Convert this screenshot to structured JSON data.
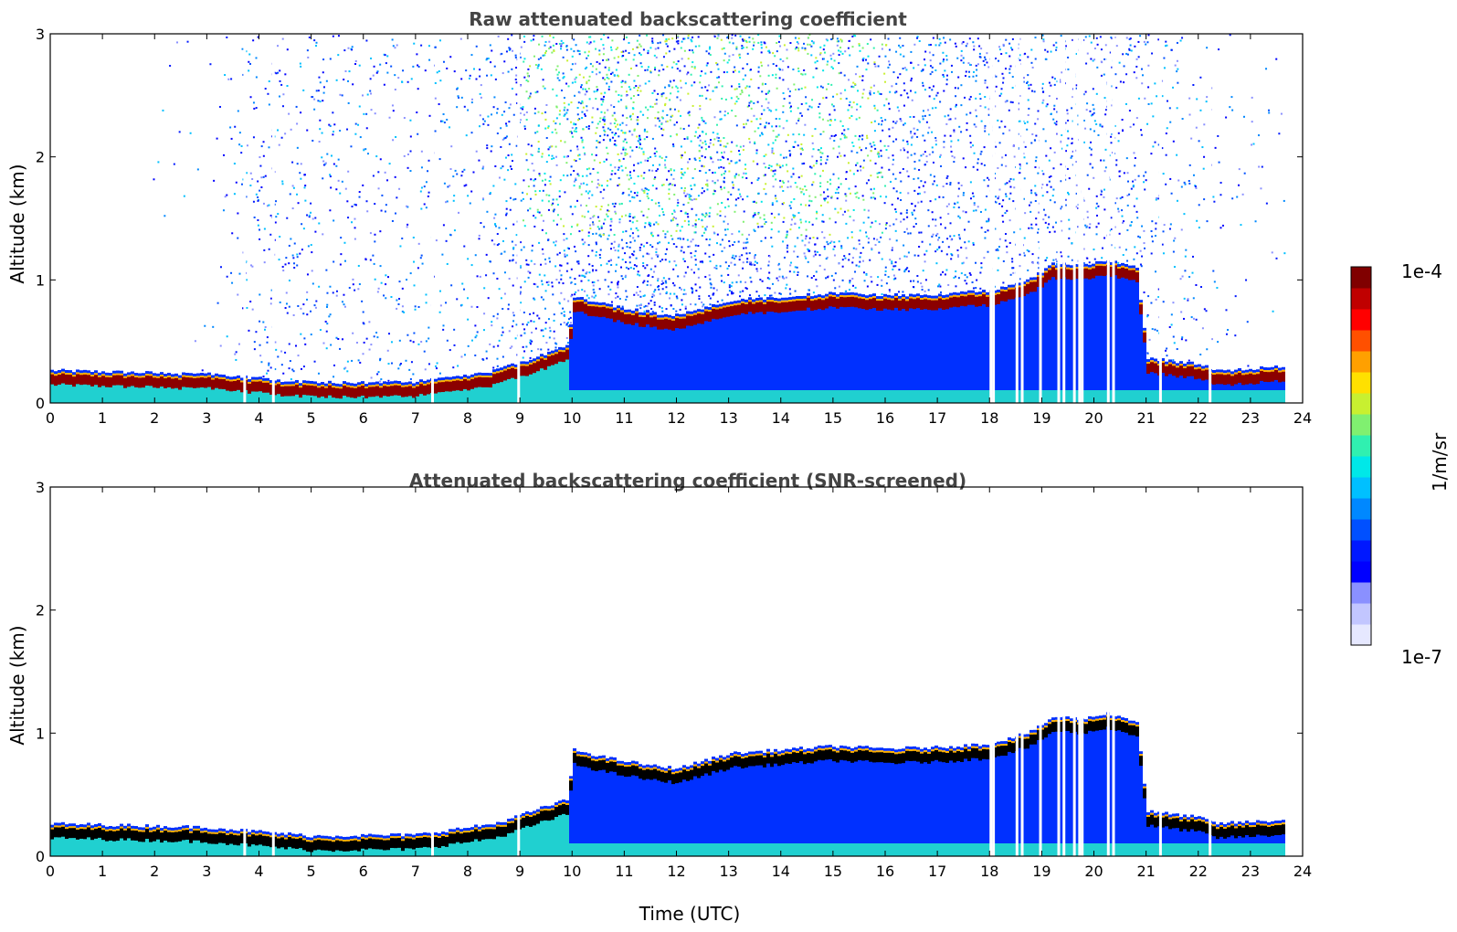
{
  "chart_data": [
    {
      "type": "heatmap",
      "title": "Raw attenuated backscattering coefficient",
      "xlabel": "",
      "ylabel": "Altitude (km)",
      "xlim": [
        0,
        24
      ],
      "ylim": [
        0,
        3
      ],
      "xticks": [
        "0",
        "1",
        "2",
        "3",
        "4",
        "5",
        "6",
        "7",
        "8",
        "9",
        "10",
        "11",
        "12",
        "13",
        "14",
        "15",
        "16",
        "17",
        "18",
        "19",
        "20",
        "21",
        "22",
        "23",
        "24"
      ],
      "yticks": [
        "0",
        "1",
        "2",
        "3"
      ],
      "data_end_hour": 23.7,
      "layer_top_km": [
        [
          0,
          0.25
        ],
        [
          3,
          0.22
        ],
        [
          5,
          0.15
        ],
        [
          7,
          0.16
        ],
        [
          8.5,
          0.25
        ],
        [
          9.9,
          0.45
        ],
        [
          10,
          0.85
        ],
        [
          10.7,
          0.78
        ],
        [
          11.5,
          0.72
        ],
        [
          12,
          0.7
        ],
        [
          13,
          0.82
        ],
        [
          14,
          0.85
        ],
        [
          15,
          0.88
        ],
        [
          16,
          0.86
        ],
        [
          17,
          0.87
        ],
        [
          18,
          0.9
        ],
        [
          18.8,
          1.0
        ],
        [
          19.2,
          1.12
        ],
        [
          19.8,
          1.1
        ],
        [
          20.2,
          1.15
        ],
        [
          20.8,
          1.08
        ],
        [
          21,
          0.35
        ],
        [
          22,
          0.3
        ],
        [
          22.3,
          0.25
        ],
        [
          23.7,
          0.28
        ]
      ],
      "noise_intensity": [
        [
          0,
          0.02
        ],
        [
          3,
          0.03
        ],
        [
          4,
          0.35
        ],
        [
          6,
          0.3
        ],
        [
          8,
          0.25
        ],
        [
          9,
          0.65
        ],
        [
          11,
          0.9
        ],
        [
          13,
          0.7
        ],
        [
          16,
          0.55
        ],
        [
          19,
          0.45
        ],
        [
          21.5,
          0.3
        ],
        [
          22.5,
          0.1
        ],
        [
          23.7,
          0.05
        ]
      ],
      "gaps_hour": [
        3.7,
        4.25,
        7.3,
        8.95,
        18.0,
        18.05,
        18.5,
        18.6,
        18.95,
        19.3,
        19.4,
        19.6,
        19.7,
        19.75,
        20.25,
        20.35,
        21.25,
        22.2
      ]
    },
    {
      "type": "heatmap",
      "title": "Attenuated backscattering coefficient (SNR-screened)",
      "xlabel": "Time (UTC)",
      "ylabel": "Altitude (km)",
      "xlim": [
        0,
        24
      ],
      "ylim": [
        0,
        3
      ],
      "xticks": [
        "0",
        "1",
        "2",
        "3",
        "4",
        "5",
        "6",
        "7",
        "8",
        "9",
        "10",
        "11",
        "12",
        "13",
        "14",
        "15",
        "16",
        "17",
        "18",
        "19",
        "20",
        "21",
        "22",
        "23",
        "24"
      ],
      "yticks": [
        "0",
        "1",
        "2",
        "3"
      ],
      "screened": true
    }
  ],
  "colorbar": {
    "label": "1/m/sr",
    "max_label": "1e-4",
    "min_label": "1e-7",
    "colors": [
      "#e6e8ff",
      "#c2c6ff",
      "#8a90ff",
      "#0000ff",
      "#0018ff",
      "#0050ff",
      "#0088ff",
      "#00c0ff",
      "#00e8e8",
      "#30f0b0",
      "#80f070",
      "#c8f030",
      "#ffe000",
      "#ffa000",
      "#ff5000",
      "#ff0000",
      "#c00000",
      "#800000"
    ]
  },
  "colors": {
    "layer": "#8b0000",
    "layer_screened": "#000000",
    "below_layer": "#0030ff",
    "near_ground": "#20d0d0"
  }
}
